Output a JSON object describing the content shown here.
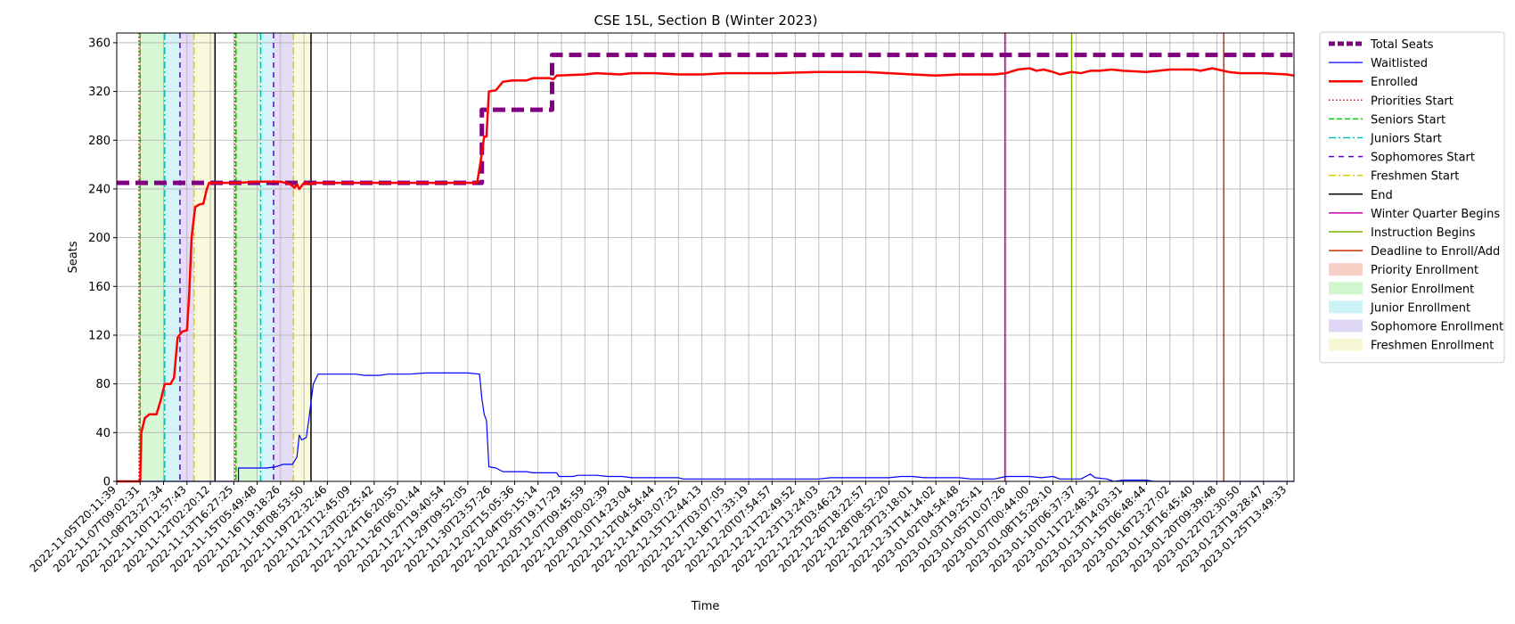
{
  "chart_data": {
    "type": "line",
    "title": "CSE 15L, Section B (Winter 2023)",
    "xlabel": "Time",
    "ylabel": "Seats",
    "ylim": [
      0,
      368
    ],
    "yticks": [
      0,
      40,
      80,
      120,
      160,
      200,
      240,
      280,
      320,
      360
    ],
    "x_tick_labels": [
      "2022-11-05T20:11:39",
      "2022-11-07T09:02:31",
      "2022-11-08T23:27:34",
      "2022-11-10T12:57:43",
      "2022-11-12T02:20:12",
      "2022-11-13T16:27:25",
      "2022-11-15T05:49:48",
      "2022-11-16T19:18:26",
      "2022-11-18T08:53:50",
      "2022-11-19T22:32:46",
      "2022-11-21T12:45:09",
      "2022-11-23T02:25:42",
      "2022-11-24T16:20:55",
      "2022-11-26T06:01:44",
      "2022-11-27T19:40:54",
      "2022-11-29T09:52:05",
      "2022-11-30T23:57:26",
      "2022-12-02T15:05:36",
      "2022-12-04T05:15:14",
      "2022-12-05T19:17:29",
      "2022-12-07T09:45:59",
      "2022-12-09T00:02:39",
      "2022-12-10T14:23:04",
      "2022-12-12T04:54:44",
      "2022-12-14T03:07:25",
      "2022-12-15T12:44:13",
      "2022-12-17T03:07:05",
      "2022-12-18T17:33:19",
      "2022-12-20T07:54:57",
      "2022-12-21T22:49:52",
      "2022-12-23T13:24:03",
      "2022-12-25T03:46:23",
      "2022-12-26T18:22:57",
      "2022-12-28T08:52:20",
      "2022-12-29T23:18:01",
      "2022-12-31T14:14:02",
      "2023-01-02T04:54:48",
      "2023-01-03T19:25:41",
      "2023-01-05T10:07:26",
      "2023-01-07T00:44:00",
      "2023-01-08T15:29:10",
      "2023-01-10T06:37:37",
      "2023-01-11T22:48:32",
      "2023-01-13T14:03:31",
      "2023-01-15T06:48:44",
      "2023-01-16T23:27:02",
      "2023-01-18T16:45:40",
      "2023-01-20T09:39:48",
      "2023-01-22T02:30:50",
      "2023-01-23T19:28:47",
      "2023-01-25T13:49:33"
    ],
    "x_range": [
      0,
      50.3
    ],
    "grid": true,
    "legend": "outside-right",
    "series": [
      {
        "name": "Total Seats",
        "color": "#800080",
        "style": "dashed-thick",
        "points": [
          [
            0,
            245
          ],
          [
            15.6,
            245
          ],
          [
            15.6,
            305
          ],
          [
            18.6,
            305
          ],
          [
            18.6,
            350
          ],
          [
            50.3,
            350
          ]
        ]
      },
      {
        "name": "Waitlisted",
        "color": "#0000ff",
        "style": "solid-thin",
        "points": [
          [
            0,
            0
          ],
          [
            5.2,
            0
          ],
          [
            5.2,
            11
          ],
          [
            6.4,
            11
          ],
          [
            6.8,
            12
          ],
          [
            7.1,
            14
          ],
          [
            7.5,
            14
          ],
          [
            7.7,
            20
          ],
          [
            7.8,
            38
          ],
          [
            7.9,
            34
          ],
          [
            8.1,
            36
          ],
          [
            8.2,
            50
          ],
          [
            8.4,
            80
          ],
          [
            8.6,
            88
          ],
          [
            8.9,
            88
          ],
          [
            9.5,
            88
          ],
          [
            10.2,
            88
          ],
          [
            10.6,
            87
          ],
          [
            11.2,
            87
          ],
          [
            11.6,
            88
          ],
          [
            12.5,
            88
          ],
          [
            13.2,
            89
          ],
          [
            14.2,
            89
          ],
          [
            15.0,
            89
          ],
          [
            15.5,
            88
          ],
          [
            15.6,
            68
          ],
          [
            15.7,
            55
          ],
          [
            15.8,
            50
          ],
          [
            15.9,
            12
          ],
          [
            16.2,
            11
          ],
          [
            16.5,
            8
          ],
          [
            17.5,
            8
          ],
          [
            17.8,
            7
          ],
          [
            18.8,
            7
          ],
          [
            18.9,
            4
          ],
          [
            19.5,
            4
          ],
          [
            19.7,
            5
          ],
          [
            20.5,
            5
          ],
          [
            21.0,
            4
          ],
          [
            21.6,
            4
          ],
          [
            22.0,
            3
          ],
          [
            24.0,
            3
          ],
          [
            24.2,
            2
          ],
          [
            30.0,
            2
          ],
          [
            30.5,
            3
          ],
          [
            33.0,
            3
          ],
          [
            33.5,
            4
          ],
          [
            34.0,
            4
          ],
          [
            34.5,
            3
          ],
          [
            36.0,
            3
          ],
          [
            36.5,
            2
          ],
          [
            37.0,
            2
          ],
          [
            37.5,
            2
          ],
          [
            38.0,
            4
          ],
          [
            39.0,
            4
          ],
          [
            39.5,
            3
          ],
          [
            40.0,
            4
          ],
          [
            40.3,
            2
          ],
          [
            41.2,
            2
          ],
          [
            41.4,
            4
          ],
          [
            41.6,
            6
          ],
          [
            41.8,
            3
          ],
          [
            42.3,
            2
          ],
          [
            42.6,
            0
          ],
          [
            43.0,
            1
          ],
          [
            44.0,
            1
          ],
          [
            44.3,
            0
          ],
          [
            50.3,
            0
          ]
        ]
      },
      {
        "name": "Enrolled",
        "color": "#ff0000",
        "style": "solid",
        "points": [
          [
            0,
            0
          ],
          [
            1.0,
            0
          ],
          [
            1.05,
            40
          ],
          [
            1.2,
            52
          ],
          [
            1.4,
            55
          ],
          [
            1.7,
            55
          ],
          [
            1.9,
            68
          ],
          [
            2.05,
            80
          ],
          [
            2.3,
            80
          ],
          [
            2.45,
            85
          ],
          [
            2.6,
            118
          ],
          [
            2.8,
            123
          ],
          [
            3.0,
            124
          ],
          [
            3.1,
            155
          ],
          [
            3.2,
            200
          ],
          [
            3.35,
            225
          ],
          [
            3.5,
            227
          ],
          [
            3.7,
            228
          ],
          [
            3.85,
            240
          ],
          [
            3.95,
            245
          ],
          [
            4.5,
            245
          ],
          [
            5.2,
            245
          ],
          [
            6.0,
            246
          ],
          [
            6.6,
            246
          ],
          [
            7.0,
            246
          ],
          [
            7.2,
            245
          ],
          [
            7.4,
            244
          ],
          [
            7.6,
            241
          ],
          [
            7.7,
            244
          ],
          [
            7.8,
            240
          ],
          [
            8.0,
            245
          ],
          [
            8.2,
            244
          ],
          [
            8.5,
            245
          ],
          [
            9.5,
            245
          ],
          [
            12.5,
            245
          ],
          [
            15.4,
            245
          ],
          [
            15.55,
            263
          ],
          [
            15.7,
            283
          ],
          [
            15.8,
            283
          ],
          [
            15.9,
            320
          ],
          [
            16.2,
            321
          ],
          [
            16.5,
            328
          ],
          [
            16.9,
            329
          ],
          [
            17.5,
            329
          ],
          [
            17.8,
            331
          ],
          [
            18.5,
            331
          ],
          [
            18.65,
            330
          ],
          [
            18.8,
            333
          ],
          [
            20.0,
            334
          ],
          [
            20.5,
            335
          ],
          [
            21.5,
            334
          ],
          [
            22.0,
            335
          ],
          [
            23.0,
            335
          ],
          [
            24.0,
            334
          ],
          [
            25.0,
            334
          ],
          [
            26.0,
            335
          ],
          [
            28.0,
            335
          ],
          [
            30.0,
            336
          ],
          [
            32.0,
            336
          ],
          [
            33.0,
            335
          ],
          [
            34.0,
            334
          ],
          [
            35.0,
            333
          ],
          [
            36.0,
            334
          ],
          [
            37.5,
            334
          ],
          [
            38.0,
            335
          ],
          [
            38.5,
            338
          ],
          [
            39.0,
            339
          ],
          [
            39.3,
            337
          ],
          [
            39.6,
            338
          ],
          [
            40.0,
            336
          ],
          [
            40.3,
            334
          ],
          [
            40.8,
            336
          ],
          [
            41.2,
            335
          ],
          [
            41.6,
            337
          ],
          [
            42.0,
            337
          ],
          [
            42.5,
            338
          ],
          [
            43.0,
            337
          ],
          [
            44.0,
            336
          ],
          [
            45.0,
            338
          ],
          [
            46.0,
            338
          ],
          [
            46.3,
            337
          ],
          [
            46.8,
            339
          ],
          [
            47.5,
            336
          ],
          [
            48.0,
            335
          ],
          [
            49.0,
            335
          ],
          [
            50.0,
            334
          ],
          [
            50.3,
            333
          ]
        ]
      }
    ],
    "vlines": [
      {
        "name": "Priorities Start",
        "x": [
          0.95,
          5.05
        ],
        "color": "#ff0000",
        "dash": "1.5,2.5"
      },
      {
        "name": "Seniors Start",
        "x": [
          1.0,
          5.1
        ],
        "color": "#00cc00",
        "dash": "6,3"
      },
      {
        "name": "Juniors Start",
        "x": [
          2.05,
          6.15
        ],
        "color": "#00bfbf",
        "dash": "8,3,2,3"
      },
      {
        "name": "Sophomores Start",
        "x": [
          2.7,
          6.7
        ],
        "color": "#6600cc",
        "dash": "6,5"
      },
      {
        "name": "Freshmen Start",
        "x": [
          3.3,
          7.55
        ],
        "color": "#ddcc00",
        "dash": "8,3,2,3"
      },
      {
        "name": "End",
        "x": [
          4.2,
          8.3
        ],
        "color": "#000000",
        "dash": ""
      },
      {
        "name": "Winter Quarter Begins",
        "x": [
          37.95
        ],
        "color": "#cc00aa",
        "dash": ""
      },
      {
        "name": "Instruction Begins",
        "x": [
          40.8
        ],
        "color": "#7fb000",
        "dash": ""
      },
      {
        "name": "Deadline to Enroll/Add",
        "x": [
          47.3
        ],
        "color": "#cc3300",
        "dash": ""
      }
    ],
    "spans": [
      {
        "name": "Priority Enrollment",
        "color": "#f4b8a8",
        "ranges": [
          [
            0.95,
            1.0
          ],
          [
            5.05,
            5.1
          ]
        ]
      },
      {
        "name": "Senior Enrollment",
        "color": "#b8f0b0",
        "ranges": [
          [
            1.0,
            2.05
          ],
          [
            5.1,
            6.15
          ]
        ]
      },
      {
        "name": "Junior Enrollment",
        "color": "#b0ecf0",
        "ranges": [
          [
            2.05,
            2.7
          ],
          [
            6.15,
            6.7
          ]
        ]
      },
      {
        "name": "Sophomore Enrollment",
        "color": "#d0c0f0",
        "ranges": [
          [
            2.7,
            3.3
          ],
          [
            6.7,
            7.55
          ]
        ]
      },
      {
        "name": "Freshmen Enrollment",
        "color": "#f4f4c0",
        "ranges": [
          [
            3.3,
            4.2
          ],
          [
            7.55,
            8.3
          ]
        ]
      }
    ],
    "legend_entries": [
      {
        "label": "Total Seats",
        "kind": "line",
        "color": "#800080",
        "dash": "7,3",
        "width": 5
      },
      {
        "label": "Waitlisted",
        "kind": "line",
        "color": "#0000ff",
        "dash": "",
        "width": 1.2
      },
      {
        "label": "Enrolled",
        "kind": "line",
        "color": "#ff0000",
        "dash": "",
        "width": 2.5
      },
      {
        "label": "Priorities Start",
        "kind": "line",
        "color": "#ff0000",
        "dash": "1.5,2.5",
        "width": 1.5
      },
      {
        "label": "Seniors Start",
        "kind": "line",
        "color": "#00cc00",
        "dash": "6,3",
        "width": 1.5
      },
      {
        "label": "Juniors Start",
        "kind": "line",
        "color": "#00bfbf",
        "dash": "8,3,2,3",
        "width": 1.5
      },
      {
        "label": "Sophomores Start",
        "kind": "line",
        "color": "#6600cc",
        "dash": "6,5",
        "width": 1.5
      },
      {
        "label": "Freshmen Start",
        "kind": "line",
        "color": "#ddcc00",
        "dash": "8,3,2,3",
        "width": 1.5
      },
      {
        "label": "End",
        "kind": "line",
        "color": "#000000",
        "dash": "",
        "width": 1.5
      },
      {
        "label": "Winter Quarter Begins",
        "kind": "line",
        "color": "#cc00aa",
        "dash": "",
        "width": 1.5
      },
      {
        "label": "Instruction Begins",
        "kind": "line",
        "color": "#7fb000",
        "dash": "",
        "width": 1.5
      },
      {
        "label": "Deadline to Enroll/Add",
        "kind": "line",
        "color": "#cc3300",
        "dash": "",
        "width": 1.5
      },
      {
        "label": "Priority Enrollment",
        "kind": "patch",
        "color": "#f4b8a8"
      },
      {
        "label": "Senior Enrollment",
        "kind": "patch",
        "color": "#b8f0b0"
      },
      {
        "label": "Junior Enrollment",
        "kind": "patch",
        "color": "#b0ecf0"
      },
      {
        "label": "Sophomore Enrollment",
        "kind": "patch",
        "color": "#d0c0f0"
      },
      {
        "label": "Freshmen Enrollment",
        "kind": "patch",
        "color": "#f4f4c0"
      }
    ]
  }
}
